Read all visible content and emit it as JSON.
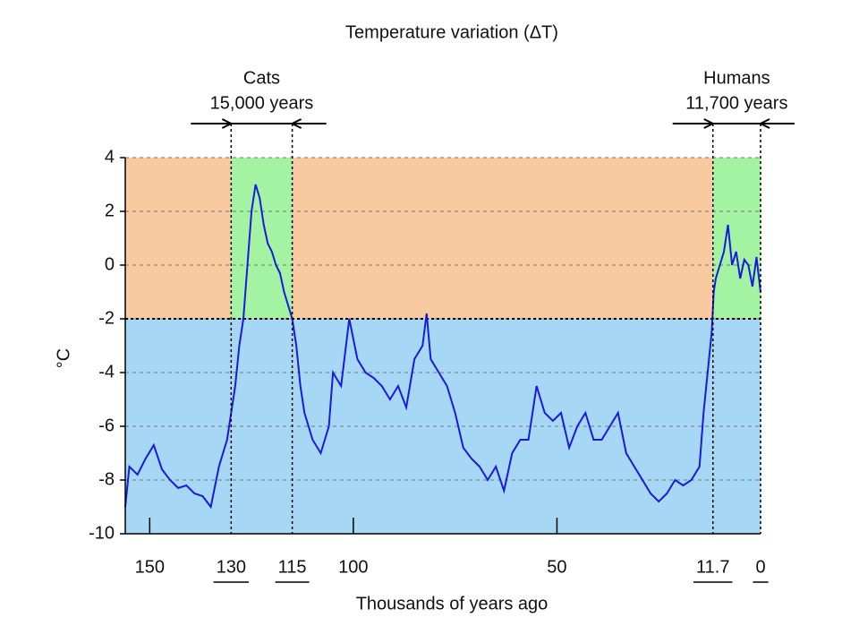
{
  "chart_data": {
    "type": "line",
    "title": "Temperature variation (ΔT)",
    "xlabel": "Thousands of years ago",
    "ylabel": "°C",
    "xlim": [
      156,
      0
    ],
    "ylim": [
      -10,
      4
    ],
    "xticks": [
      150,
      130,
      115,
      100,
      50,
      11.7,
      0
    ],
    "yticks": [
      -10,
      -8,
      -6,
      -4,
      -2,
      0,
      2,
      4
    ],
    "grid": true,
    "threshold": -2,
    "colors": {
      "warm": "#f9c9a0",
      "cold": "#a6d8f5",
      "period": "#a3f3a3",
      "line": "#1a1adf"
    },
    "periods": [
      {
        "label": "Cats",
        "duration": "15,000 years",
        "start": 130,
        "end": 115
      },
      {
        "label": "Humans",
        "duration": "11,700 years",
        "start": 11.7,
        "end": 0
      }
    ],
    "x": [
      156,
      155,
      153,
      151,
      149,
      147,
      145,
      143,
      141,
      139,
      137,
      135,
      133,
      131,
      129,
      128,
      127,
      126,
      125,
      124,
      123,
      122,
      121,
      120,
      119,
      118,
      117,
      116,
      115,
      114,
      113,
      112,
      110,
      108,
      106,
      105,
      103,
      101,
      99,
      97,
      95,
      93,
      91,
      89,
      87,
      85,
      83,
      82,
      81,
      79,
      77,
      75,
      73,
      71,
      69,
      67,
      65,
      63,
      61,
      59,
      57,
      55,
      53,
      51,
      49,
      47,
      45,
      43,
      41,
      39,
      37,
      35,
      33,
      31,
      29,
      27,
      25,
      23,
      21,
      19,
      17,
      15,
      14,
      13,
      12,
      11.5,
      11,
      10,
      9,
      8,
      7,
      6,
      5,
      4,
      3,
      2,
      1,
      0
    ],
    "values": [
      -9,
      -7.5,
      -7.8,
      -7.2,
      -6.7,
      -7.6,
      -8,
      -8.3,
      -8.2,
      -8.5,
      -8.6,
      -9,
      -7.5,
      -6.5,
      -4.5,
      -3,
      -2,
      0,
      2,
      3,
      2.5,
      1.5,
      0.8,
      0.5,
      0,
      -0.3,
      -1,
      -1.5,
      -2,
      -3,
      -4.5,
      -5.5,
      -6.5,
      -7,
      -6,
      -4,
      -4.5,
      -2,
      -3.5,
      -4,
      -4.2,
      -4.5,
      -5,
      -4.5,
      -5.3,
      -3.5,
      -3,
      -1.8,
      -3.5,
      -4,
      -4.5,
      -5.5,
      -6.8,
      -7.2,
      -7.5,
      -8,
      -7.5,
      -8.4,
      -7,
      -6.5,
      -6.5,
      -4.5,
      -5.5,
      -5.8,
      -5.5,
      -6.8,
      -6,
      -5.5,
      -6.5,
      -6.5,
      -6,
      -5.5,
      -7,
      -7.5,
      -8,
      -8.5,
      -8.8,
      -8.5,
      -8,
      -8.2,
      -8,
      -7.5,
      -5.5,
      -4,
      -2.5,
      -1,
      -0.5,
      0,
      0.5,
      1.5,
      0,
      0.5,
      -0.5,
      0.2,
      0,
      -0.8,
      0.3,
      -1
    ]
  }
}
